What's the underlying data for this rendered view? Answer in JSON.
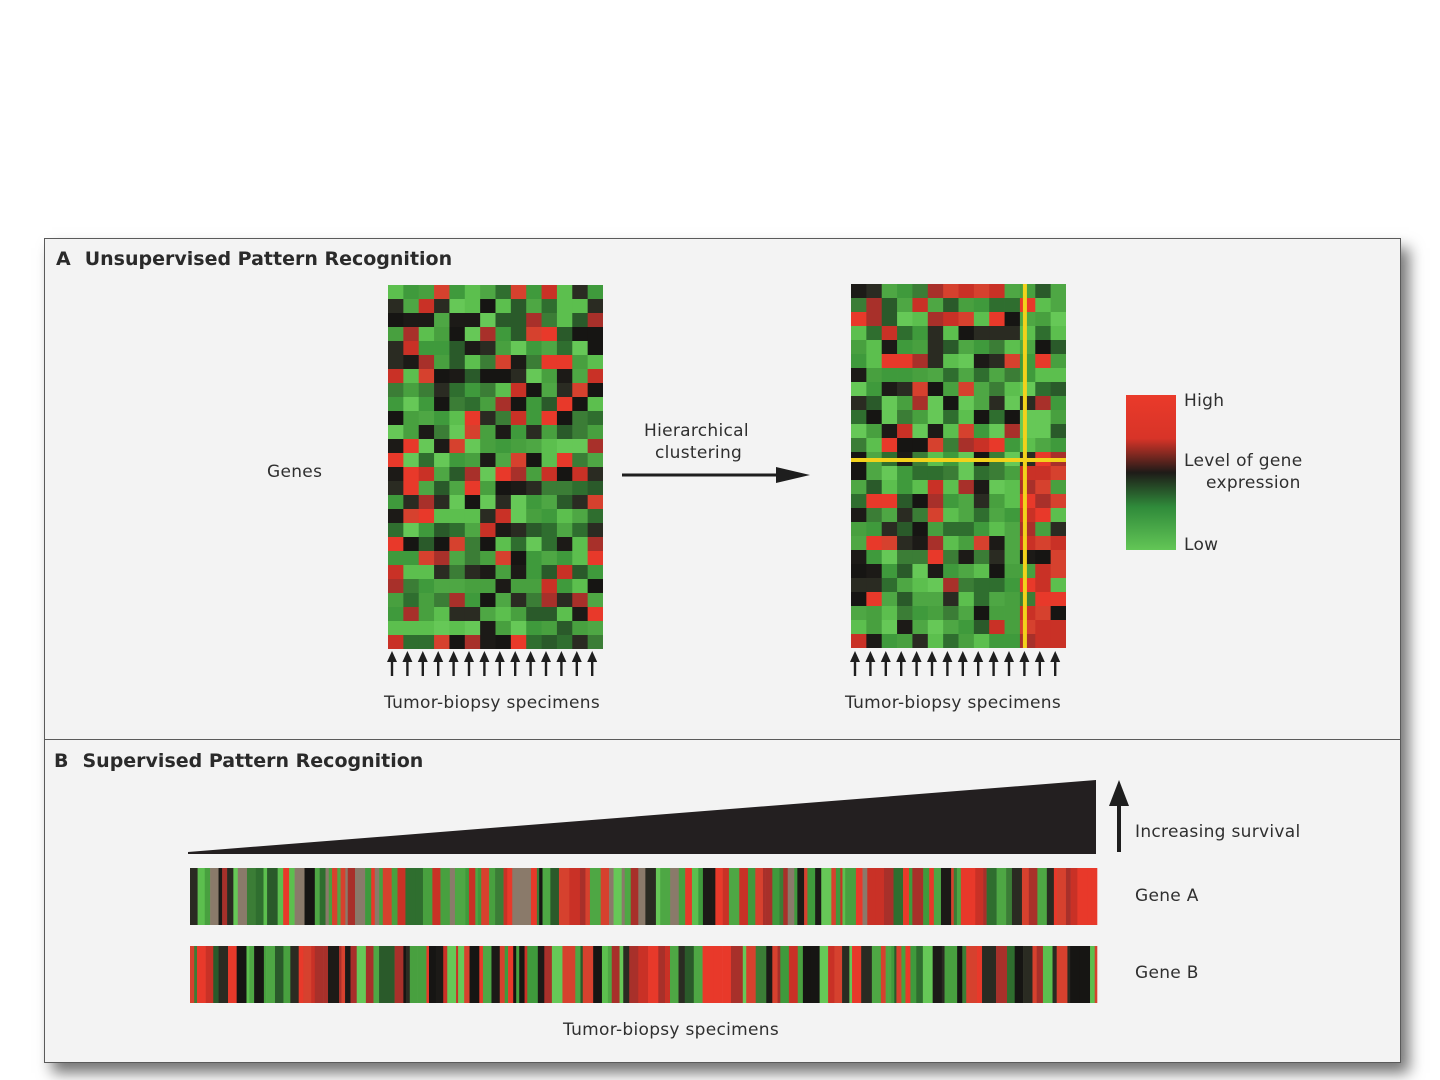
{
  "panel_a": {
    "letter": "A",
    "title": "Unsupervised Pattern Recognition",
    "genes_label": "Genes",
    "arrow_label_line1": "Hierarchical",
    "arrow_label_line2": "clustering",
    "specimens_label_left": "Tumor-biopsy specimens",
    "specimens_label_right": "Tumor-biopsy specimens",
    "legend": {
      "high": "High",
      "title_line1": "Level of gene",
      "title_line2": "expression",
      "low": "Low"
    }
  },
  "panel_b": {
    "letter": "B",
    "title": "Supervised Pattern Recognition",
    "survival_label": "Increasing survival",
    "gene_a_label": "Gene A",
    "gene_b_label": "Gene B",
    "specimens_label": "Tumor-biopsy specimens"
  },
  "colors": {
    "high": "#e8392a",
    "mid": "#1c1a17",
    "low": "#5cbf4e",
    "highlight": "#f2d21b"
  },
  "heatmap": {
    "rows": 26,
    "cols": 14
  }
}
